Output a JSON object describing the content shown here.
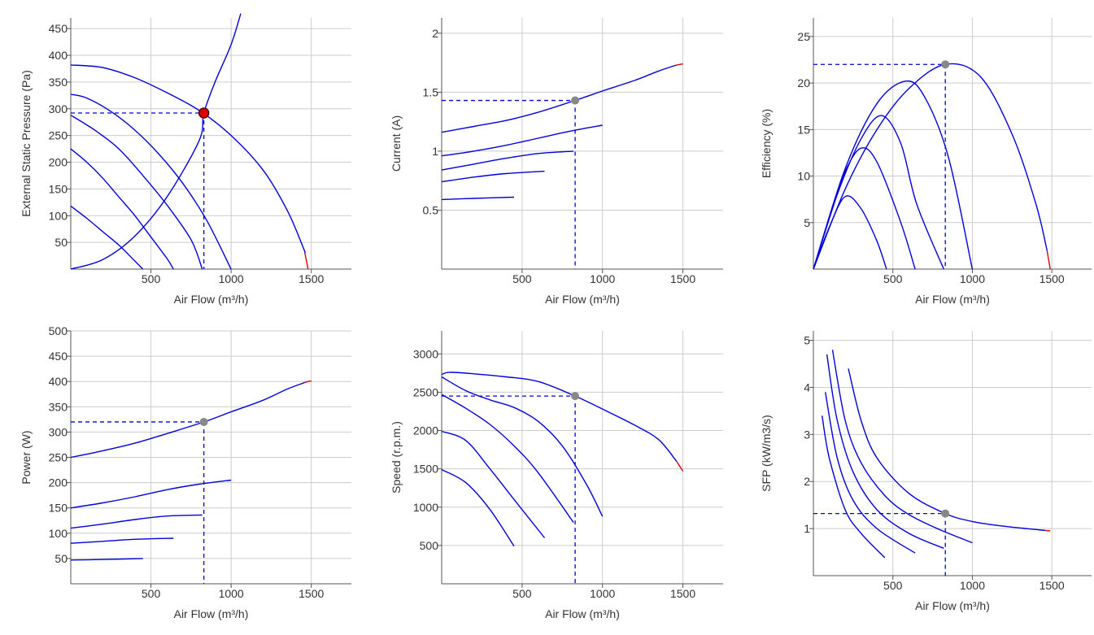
{
  "colors": {
    "curve": "#0000dd",
    "max_segment": "#dd0000",
    "grid": "#cccccc",
    "axis": "#555555",
    "duty_marker": "#dd0000",
    "duty_marker_other": "#888888",
    "guide": "#0000dd"
  },
  "chart_data": [
    {
      "id": "pressure",
      "type": "line",
      "xlabel": "Air Flow (m³/h)",
      "ylabel": "External Static Pressure (Pa)",
      "xlim": [
        0,
        1750
      ],
      "ylim": [
        0,
        470
      ],
      "xticks": [
        500,
        1000,
        1500
      ],
      "yticks": [
        50,
        100,
        150,
        200,
        250,
        300,
        350,
        400,
        450
      ],
      "grid": true,
      "series": [
        {
          "values": [
            [
              0,
              382
            ],
            [
              200,
              377
            ],
            [
              400,
              358
            ],
            [
              600,
              330
            ],
            [
              800,
              297
            ],
            [
              1000,
              250
            ],
            [
              1200,
              185
            ],
            [
              1350,
              110
            ],
            [
              1450,
              40
            ],
            [
              1460,
              30
            ]
          ],
          "max_tail": [
            [
              1460,
              30
            ],
            [
              1470,
              15
            ],
            [
              1480,
              0
            ]
          ]
        },
        {
          "values": [
            [
              0,
              327
            ],
            [
              100,
              320
            ],
            [
              250,
              295
            ],
            [
              400,
              260
            ],
            [
              550,
              215
            ],
            [
              700,
              160
            ],
            [
              850,
              90
            ],
            [
              1000,
              0
            ]
          ]
        },
        {
          "values": [
            [
              0,
              288
            ],
            [
              150,
              260
            ],
            [
              300,
              225
            ],
            [
              450,
              175
            ],
            [
              600,
              120
            ],
            [
              750,
              55
            ],
            [
              820,
              0
            ]
          ]
        },
        {
          "values": [
            [
              0,
              225
            ],
            [
              100,
              200
            ],
            [
              200,
              170
            ],
            [
              300,
              135
            ],
            [
              400,
              100
            ],
            [
              500,
              60
            ],
            [
              600,
              20
            ],
            [
              640,
              0
            ]
          ]
        },
        {
          "values": [
            [
              0,
              118
            ],
            [
              100,
              95
            ],
            [
              200,
              70
            ],
            [
              300,
              45
            ],
            [
              400,
              15
            ],
            [
              450,
              0
            ]
          ]
        },
        {
          "values": [
            [
              0,
              0
            ],
            [
              200,
              18
            ],
            [
              400,
              62
            ],
            [
              600,
              135
            ],
            [
              800,
              240
            ],
            [
              830,
              292
            ],
            [
              900,
              350
            ],
            [
              1000,
              420
            ],
            [
              1060,
              478
            ]
          ]
        }
      ],
      "duty_point": {
        "x": 830,
        "y": 292,
        "color": "#dd0000"
      }
    },
    {
      "id": "current",
      "type": "line",
      "xlabel": "Air Flow (m³/h)",
      "ylabel": "Current (A)",
      "xlim": [
        0,
        1750
      ],
      "ylim": [
        0,
        2.13
      ],
      "xticks": [
        500,
        1000,
        1500
      ],
      "yticks": [
        0.5,
        1,
        1.5,
        2
      ],
      "grid": true,
      "series": [
        {
          "values": [
            [
              0,
              1.16
            ],
            [
              200,
              1.21
            ],
            [
              400,
              1.26
            ],
            [
              600,
              1.33
            ],
            [
              830,
              1.43
            ],
            [
              1000,
              1.51
            ],
            [
              1200,
              1.6
            ],
            [
              1350,
              1.68
            ],
            [
              1460,
              1.73
            ]
          ],
          "max_tail": [
            [
              1460,
              1.73
            ],
            [
              1500,
              1.74
            ]
          ]
        },
        {
          "values": [
            [
              0,
              0.96
            ],
            [
              200,
              1.0
            ],
            [
              400,
              1.05
            ],
            [
              600,
              1.11
            ],
            [
              800,
              1.17
            ],
            [
              1000,
              1.22
            ]
          ]
        },
        {
          "values": [
            [
              0,
              0.84
            ],
            [
              200,
              0.89
            ],
            [
              400,
              0.94
            ],
            [
              600,
              0.98
            ],
            [
              820,
              1.0
            ]
          ]
        },
        {
          "values": [
            [
              0,
              0.74
            ],
            [
              200,
              0.78
            ],
            [
              400,
              0.81
            ],
            [
              640,
              0.83
            ]
          ]
        },
        {
          "values": [
            [
              0,
              0.59
            ],
            [
              200,
              0.6
            ],
            [
              450,
              0.61
            ]
          ]
        }
      ],
      "duty_point": {
        "x": 830,
        "y": 1.43,
        "color": "#888888"
      }
    },
    {
      "id": "efficiency",
      "type": "line",
      "xlabel": "Air Flow (m³/h)",
      "ylabel": "Efficiency (%)",
      "xlim": [
        0,
        1750
      ],
      "ylim": [
        0,
        27
      ],
      "xticks": [
        500,
        1000,
        1500
      ],
      "yticks": [
        5,
        10,
        15,
        20,
        25
      ],
      "grid": true,
      "series": [
        {
          "values": [
            [
              0,
              0
            ],
            [
              200,
              8.6
            ],
            [
              400,
              15.0
            ],
            [
              600,
              19.4
            ],
            [
              830,
              22.0
            ],
            [
              1050,
              20.7
            ],
            [
              1250,
              14.5
            ],
            [
              1400,
              7
            ],
            [
              1470,
              2
            ]
          ],
          "max_tail": [
            [
              1470,
              2
            ],
            [
              1490,
              0
            ]
          ]
        },
        {
          "values": [
            [
              0,
              0
            ],
            [
              200,
              10.8
            ],
            [
              400,
              17.8
            ],
            [
              580,
              20.2
            ],
            [
              700,
              18.5
            ],
            [
              850,
              12
            ],
            [
              1000,
              0
            ]
          ]
        },
        {
          "values": [
            [
              0,
              0
            ],
            [
              150,
              8
            ],
            [
              300,
              14
            ],
            [
              430,
              16.5
            ],
            [
              550,
              13.5
            ],
            [
              650,
              7
            ],
            [
              820,
              0
            ]
          ]
        },
        {
          "values": [
            [
              0,
              0
            ],
            [
              120,
              6.5
            ],
            [
              200,
              10.5
            ],
            [
              300,
              13.0
            ],
            [
              400,
              11.5
            ],
            [
              550,
              5
            ],
            [
              640,
              0
            ]
          ]
        },
        {
          "values": [
            [
              0,
              0
            ],
            [
              100,
              4.5
            ],
            [
              200,
              7.8
            ],
            [
              300,
              6.5
            ],
            [
              400,
              3
            ],
            [
              460,
              0
            ]
          ]
        }
      ],
      "duty_point": {
        "x": 830,
        "y": 22,
        "color": "#888888"
      }
    },
    {
      "id": "power",
      "type": "line",
      "xlabel": "Air Flow (m³/h)",
      "ylabel": "Power (W)",
      "xlim": [
        0,
        1750
      ],
      "ylim": [
        0,
        500
      ],
      "xticks": [
        500,
        1000,
        1500
      ],
      "yticks": [
        50,
        100,
        150,
        200,
        250,
        300,
        350,
        400,
        450,
        500
      ],
      "grid": true,
      "series": [
        {
          "values": [
            [
              0,
              250
            ],
            [
              200,
              263
            ],
            [
              400,
              278
            ],
            [
              600,
              297
            ],
            [
              830,
              320
            ],
            [
              1000,
              340
            ],
            [
              1200,
              363
            ],
            [
              1350,
              385
            ],
            [
              1460,
              398
            ]
          ],
          "max_tail": [
            [
              1460,
              398
            ],
            [
              1480,
              400
            ],
            [
              1500,
              401
            ]
          ]
        },
        {
          "values": [
            [
              0,
              150
            ],
            [
              200,
              160
            ],
            [
              400,
              172
            ],
            [
              600,
              186
            ],
            [
              800,
              197
            ],
            [
              1000,
              205
            ]
          ]
        },
        {
          "values": [
            [
              0,
              110
            ],
            [
              200,
              118
            ],
            [
              400,
              127
            ],
            [
              600,
              134
            ],
            [
              820,
              136
            ]
          ]
        },
        {
          "values": [
            [
              0,
              80
            ],
            [
              200,
              84
            ],
            [
              400,
              88
            ],
            [
              640,
              90
            ]
          ]
        },
        {
          "values": [
            [
              0,
              47
            ],
            [
              200,
              48
            ],
            [
              450,
              50
            ]
          ]
        }
      ],
      "duty_point": {
        "x": 830,
        "y": 320,
        "color": "#888888"
      }
    },
    {
      "id": "speed",
      "type": "line",
      "xlabel": "Air Flow (m³/h)",
      "ylabel": "Speed (r.p.m.)",
      "xlim": [
        0,
        1750
      ],
      "ylim": [
        0,
        3300
      ],
      "xticks": [
        500,
        1000,
        1500
      ],
      "yticks": [
        500,
        1000,
        1500,
        2000,
        2500,
        3000
      ],
      "grid": true,
      "series": [
        {
          "values": [
            [
              0,
              2730
            ],
            [
              50,
              2760
            ],
            [
              200,
              2740
            ],
            [
              400,
              2700
            ],
            [
              600,
              2640
            ],
            [
              830,
              2450
            ],
            [
              1000,
              2280
            ],
            [
              1200,
              2070
            ],
            [
              1350,
              1880
            ],
            [
              1460,
              1600
            ]
          ],
          "max_tail": [
            [
              1460,
              1600
            ],
            [
              1500,
              1470
            ]
          ]
        },
        {
          "values": [
            [
              0,
              2700
            ],
            [
              150,
              2520
            ],
            [
              300,
              2400
            ],
            [
              450,
              2300
            ],
            [
              600,
              2120
            ],
            [
              750,
              1800
            ],
            [
              900,
              1300
            ],
            [
              1000,
              880
            ]
          ]
        },
        {
          "values": [
            [
              0,
              2470
            ],
            [
              150,
              2290
            ],
            [
              300,
              2080
            ],
            [
              450,
              1800
            ],
            [
              600,
              1450
            ],
            [
              820,
              800
            ]
          ]
        },
        {
          "values": [
            [
              0,
              1990
            ],
            [
              150,
              1870
            ],
            [
              300,
              1500
            ],
            [
              450,
              1100
            ],
            [
              640,
              600
            ]
          ]
        },
        {
          "values": [
            [
              0,
              1490
            ],
            [
              150,
              1320
            ],
            [
              300,
              970
            ],
            [
              450,
              490
            ]
          ]
        }
      ],
      "duty_point": {
        "x": 830,
        "y": 2450,
        "color": "#888888"
      }
    },
    {
      "id": "sfp",
      "type": "line",
      "xlabel": "Air Flow (m³/h)",
      "ylabel": "SFP (kW/m3/s)",
      "xlim": [
        0,
        1750
      ],
      "ylim": [
        0,
        5.2
      ],
      "xticks": [
        500,
        1000,
        1500
      ],
      "yticks": [
        1,
        2,
        3,
        4,
        5
      ],
      "grid": true,
      "series": [
        {
          "values": [
            [
              220,
              4.4
            ],
            [
              300,
              3.3
            ],
            [
              400,
              2.5
            ],
            [
              600,
              1.75
            ],
            [
              830,
              1.32
            ],
            [
              1000,
              1.15
            ],
            [
              1200,
              1.05
            ],
            [
              1460,
              0.96
            ]
          ],
          "max_tail": [
            [
              1460,
              0.96
            ],
            [
              1490,
              0.95
            ]
          ]
        },
        {
          "values": [
            [
              120,
              4.8
            ],
            [
              200,
              3.3
            ],
            [
              300,
              2.4
            ],
            [
              450,
              1.7
            ],
            [
              600,
              1.3
            ],
            [
              800,
              0.97
            ],
            [
              1000,
              0.7
            ]
          ]
        },
        {
          "values": [
            [
              85,
              4.7
            ],
            [
              150,
              3.3
            ],
            [
              250,
              2.2
            ],
            [
              400,
              1.4
            ],
            [
              600,
              0.9
            ],
            [
              820,
              0.58
            ]
          ]
        },
        {
          "values": [
            [
              75,
              3.9
            ],
            [
              150,
              2.5
            ],
            [
              250,
              1.6
            ],
            [
              400,
              1.0
            ],
            [
              640,
              0.48
            ]
          ]
        },
        {
          "values": [
            [
              55,
              3.4
            ],
            [
              100,
              2.5
            ],
            [
              200,
              1.4
            ],
            [
              300,
              0.9
            ],
            [
              450,
              0.38
            ]
          ]
        }
      ],
      "duty_point": {
        "x": 830,
        "y": 1.32,
        "color": "#888888"
      }
    }
  ]
}
